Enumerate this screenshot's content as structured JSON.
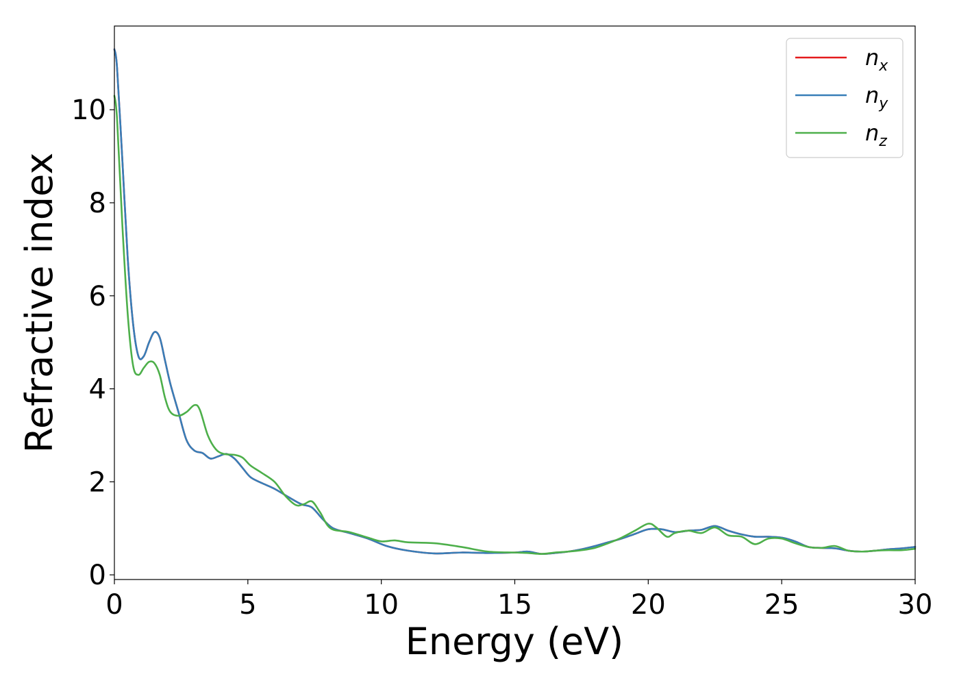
{
  "chart_data": {
    "type": "line",
    "title": "",
    "xlabel": "Energy (eV)",
    "ylabel": "Refractive index",
    "xlim": [
      0,
      30
    ],
    "ylim": [
      -0.1,
      11.8
    ],
    "xticks": [
      0,
      5,
      10,
      15,
      20,
      25,
      30
    ],
    "yticks": [
      0,
      2,
      4,
      6,
      8,
      10
    ],
    "xtick_labels": [
      "0",
      "5",
      "10",
      "15",
      "20",
      "25",
      "30"
    ],
    "ytick_labels": [
      "0",
      "2",
      "4",
      "6",
      "8",
      "10"
    ],
    "grid": false,
    "legend_position": "top-right",
    "series": [
      {
        "name": "n",
        "subscript": "x",
        "color": "#e41a1c",
        "x": [
          0.0,
          0.1,
          0.3,
          0.5,
          0.7,
          0.9,
          1.1,
          1.3,
          1.5,
          1.7,
          1.9,
          2.1,
          2.4,
          2.7,
          3.0,
          3.3,
          3.6,
          3.9,
          4.2,
          4.5,
          4.8,
          5.1,
          5.5,
          6.0,
          6.5,
          7.0,
          7.4,
          7.8,
          8.2,
          8.8,
          9.5,
          10.2,
          11.0,
          12.0,
          13.0,
          14.0,
          15.0,
          15.5,
          16.0,
          16.5,
          17.0,
          17.5,
          18.0,
          18.5,
          19.0,
          19.5,
          20.0,
          20.5,
          21.0,
          21.5,
          22.0,
          22.5,
          23.0,
          23.5,
          24.0,
          24.5,
          25.0,
          25.5,
          26.0,
          26.5,
          27.0,
          27.5,
          28.0,
          28.5,
          29.0,
          29.5,
          30.0
        ],
        "y": [
          11.3,
          10.9,
          8.9,
          6.8,
          5.4,
          4.7,
          4.7,
          5.0,
          5.22,
          5.1,
          4.6,
          4.1,
          3.5,
          2.9,
          2.67,
          2.62,
          2.5,
          2.55,
          2.6,
          2.5,
          2.3,
          2.1,
          1.98,
          1.85,
          1.68,
          1.52,
          1.45,
          1.2,
          1.0,
          0.9,
          0.78,
          0.62,
          0.52,
          0.46,
          0.48,
          0.47,
          0.48,
          0.5,
          0.45,
          0.47,
          0.5,
          0.55,
          0.62,
          0.7,
          0.78,
          0.88,
          0.98,
          0.98,
          0.92,
          0.95,
          0.97,
          1.05,
          0.95,
          0.87,
          0.82,
          0.82,
          0.8,
          0.72,
          0.6,
          0.58,
          0.57,
          0.52,
          0.5,
          0.52,
          0.55,
          0.57,
          0.6
        ]
      },
      {
        "name": "n",
        "subscript": "y",
        "color": "#377eb8",
        "x": [
          0.0,
          0.1,
          0.3,
          0.5,
          0.7,
          0.9,
          1.1,
          1.3,
          1.5,
          1.7,
          1.9,
          2.1,
          2.4,
          2.7,
          3.0,
          3.3,
          3.6,
          3.9,
          4.2,
          4.5,
          4.8,
          5.1,
          5.5,
          6.0,
          6.5,
          7.0,
          7.4,
          7.8,
          8.2,
          8.8,
          9.5,
          10.2,
          11.0,
          12.0,
          13.0,
          14.0,
          15.0,
          15.5,
          16.0,
          16.5,
          17.0,
          17.5,
          18.0,
          18.5,
          19.0,
          19.5,
          20.0,
          20.5,
          21.0,
          21.5,
          22.0,
          22.5,
          23.0,
          23.5,
          24.0,
          24.5,
          25.0,
          25.5,
          26.0,
          26.5,
          27.0,
          27.5,
          28.0,
          28.5,
          29.0,
          29.5,
          30.0
        ],
        "y": [
          11.3,
          10.9,
          8.9,
          6.8,
          5.4,
          4.7,
          4.7,
          5.0,
          5.22,
          5.1,
          4.6,
          4.1,
          3.5,
          2.9,
          2.67,
          2.62,
          2.5,
          2.55,
          2.6,
          2.5,
          2.3,
          2.1,
          1.98,
          1.85,
          1.68,
          1.52,
          1.45,
          1.2,
          1.0,
          0.9,
          0.78,
          0.62,
          0.52,
          0.46,
          0.48,
          0.47,
          0.48,
          0.5,
          0.45,
          0.47,
          0.5,
          0.55,
          0.62,
          0.7,
          0.78,
          0.88,
          0.98,
          0.98,
          0.92,
          0.95,
          0.97,
          1.05,
          0.95,
          0.87,
          0.82,
          0.82,
          0.8,
          0.72,
          0.6,
          0.58,
          0.57,
          0.52,
          0.5,
          0.52,
          0.55,
          0.57,
          0.6
        ]
      },
      {
        "name": "n",
        "subscript": "z",
        "color": "#4daf4a",
        "x": [
          0.0,
          0.1,
          0.3,
          0.5,
          0.7,
          0.9,
          1.1,
          1.3,
          1.5,
          1.7,
          1.9,
          2.1,
          2.4,
          2.7,
          3.0,
          3.2,
          3.5,
          3.8,
          4.1,
          4.5,
          4.8,
          5.1,
          5.5,
          6.0,
          6.4,
          6.8,
          7.1,
          7.4,
          7.7,
          8.1,
          8.8,
          9.5,
          10.0,
          10.5,
          11.0,
          12.0,
          13.0,
          14.0,
          15.0,
          15.5,
          16.0,
          16.5,
          17.0,
          17.5,
          18.0,
          18.5,
          19.0,
          19.5,
          20.0,
          20.3,
          20.7,
          21.0,
          21.5,
          22.0,
          22.5,
          23.0,
          23.5,
          24.0,
          24.5,
          25.0,
          25.5,
          26.0,
          26.5,
          27.0,
          27.5,
          28.0,
          28.5,
          29.0,
          29.5,
          30.0
        ],
        "y": [
          10.3,
          9.8,
          7.5,
          5.6,
          4.5,
          4.3,
          4.45,
          4.58,
          4.55,
          4.3,
          3.8,
          3.5,
          3.42,
          3.5,
          3.65,
          3.55,
          3.0,
          2.7,
          2.6,
          2.58,
          2.52,
          2.35,
          2.2,
          2.0,
          1.7,
          1.5,
          1.52,
          1.58,
          1.35,
          1.0,
          0.92,
          0.8,
          0.72,
          0.74,
          0.7,
          0.68,
          0.6,
          0.5,
          0.48,
          0.47,
          0.45,
          0.48,
          0.5,
          0.53,
          0.58,
          0.68,
          0.8,
          0.95,
          1.1,
          1.02,
          0.82,
          0.9,
          0.95,
          0.9,
          1.02,
          0.85,
          0.82,
          0.66,
          0.78,
          0.78,
          0.68,
          0.6,
          0.58,
          0.62,
          0.52,
          0.5,
          0.52,
          0.53,
          0.53,
          0.56
        ]
      }
    ]
  }
}
